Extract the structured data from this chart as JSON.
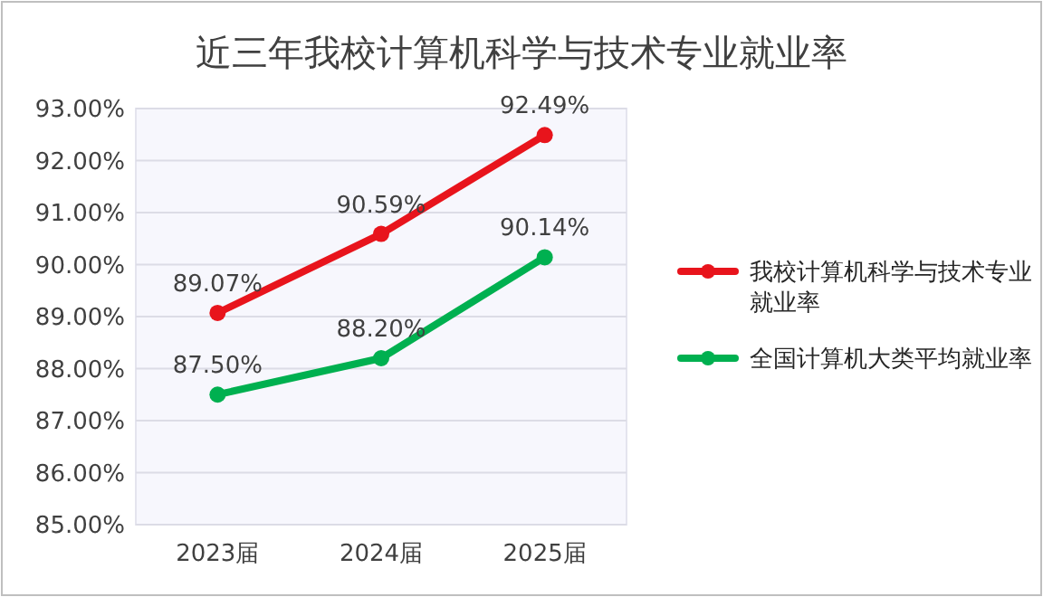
{
  "chart_data": {
    "type": "line",
    "title": "近三年我校计算机科学与技术专业就业率",
    "categories": [
      "2023届",
      "2024届",
      "2025届"
    ],
    "series": [
      {
        "name": "我校计算机科学与技术专业就业率",
        "color": "#e8141c",
        "values": [
          89.07,
          90.59,
          92.49
        ],
        "value_labels": [
          "89.07%",
          "90.59%",
          "92.49%"
        ]
      },
      {
        "name": "全国计算机大类平均就业率",
        "color": "#00b050",
        "values": [
          87.5,
          88.2,
          90.14
        ],
        "value_labels": [
          "87.50%",
          "88.20%",
          "90.14%"
        ]
      }
    ],
    "ylim": [
      85,
      93
    ],
    "yticks": [
      {
        "value": 85,
        "label": "85.00%"
      },
      {
        "value": 86,
        "label": "86.00%"
      },
      {
        "value": 87,
        "label": "87.00%"
      },
      {
        "value": 88,
        "label": "88.00%"
      },
      {
        "value": 89,
        "label": "89.00%"
      },
      {
        "value": 90,
        "label": "90.00%"
      },
      {
        "value": 91,
        "label": "91.00%"
      },
      {
        "value": 92,
        "label": "92.00%"
      },
      {
        "value": 93,
        "label": "93.00%"
      }
    ],
    "grid": "y",
    "legend": "right",
    "marker": "circle",
    "line_style": "solid"
  }
}
